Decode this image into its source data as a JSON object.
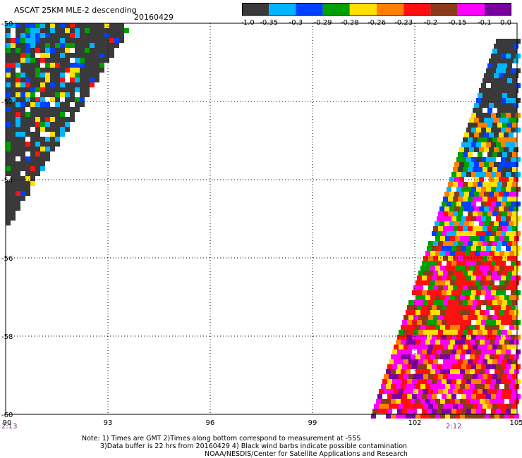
{
  "header": {
    "title": "ASCAT 25KM MLE-2 descending",
    "date": "20160429"
  },
  "colorbar": {
    "colors": [
      "#3a3a3a",
      "#00b4ff",
      "#0040ff",
      "#00a000",
      "#ffe000",
      "#ff8000",
      "#ff1010",
      "#8b3a1a",
      "#ff00ff",
      "#7a00a0"
    ],
    "labels": [
      "-1.0",
      "-0.35",
      "-0.3",
      "-0.29",
      "-0.28",
      "-0.26",
      "-0.23",
      "-0.2",
      "-0.15",
      "-0.1",
      "0.0"
    ]
  },
  "map": {
    "lon_ticks": [
      "90",
      "93",
      "96",
      "99",
      "102",
      "105"
    ],
    "lat_ticks": [
      "-50",
      "-52",
      "-54",
      "-56",
      "-58",
      "-60"
    ],
    "lon_range": [
      90,
      105
    ],
    "lat_range": [
      -50,
      -60
    ],
    "times": {
      "left": "2:13",
      "right": "2:12"
    }
  },
  "notes": {
    "line1": "Note: 1) Times are GMT 2)Times along bottom correspond to measurement at -55S",
    "line2": "3)Data buffer is 22 hrs from 20160429 4) Black wind barbs indicate possible contamination",
    "line3": "NOAA/NESDIS/Center for Satellite Applications and Research"
  }
}
